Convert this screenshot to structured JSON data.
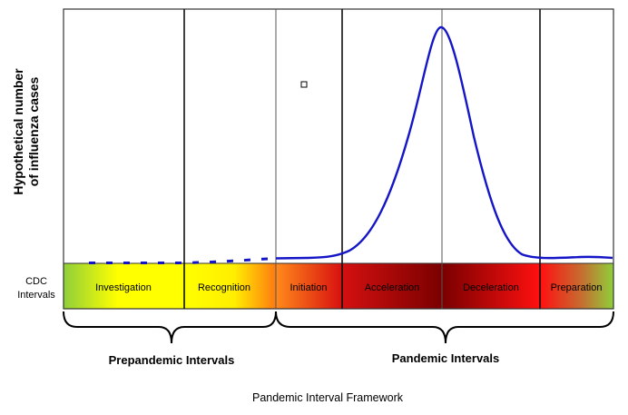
{
  "y_axis_label_line1": "Hypothetical number",
  "y_axis_label_line2": "of influenza cases",
  "cdc_label_line1": "CDC",
  "cdc_label_line2": "Intervals",
  "intervals": [
    {
      "label": "Investigation"
    },
    {
      "label": "Recognition"
    },
    {
      "label": "Initiation"
    },
    {
      "label": "Acceleration"
    },
    {
      "label": "Deceleration"
    },
    {
      "label": "Preparation"
    }
  ],
  "groups": {
    "prepandemic": "Prepandemic Intervals",
    "pandemic": "Pandemic Intervals"
  },
  "caption": "Pandemic Interval Framework",
  "colors": {
    "curve": "#1515c8",
    "investigation": [
      "#8fcf3a",
      "#ffff00"
    ],
    "recognition": [
      "#ffff00",
      "#ff7a10"
    ],
    "initiation": [
      "#ff8a1a",
      "#d41010"
    ],
    "acceleration": [
      "#d41010",
      "#7a0000"
    ],
    "deceleration": [
      "#7a0000",
      "#ff1010"
    ],
    "preparation": [
      "#ff1010",
      "#8fcf3a"
    ]
  }
}
